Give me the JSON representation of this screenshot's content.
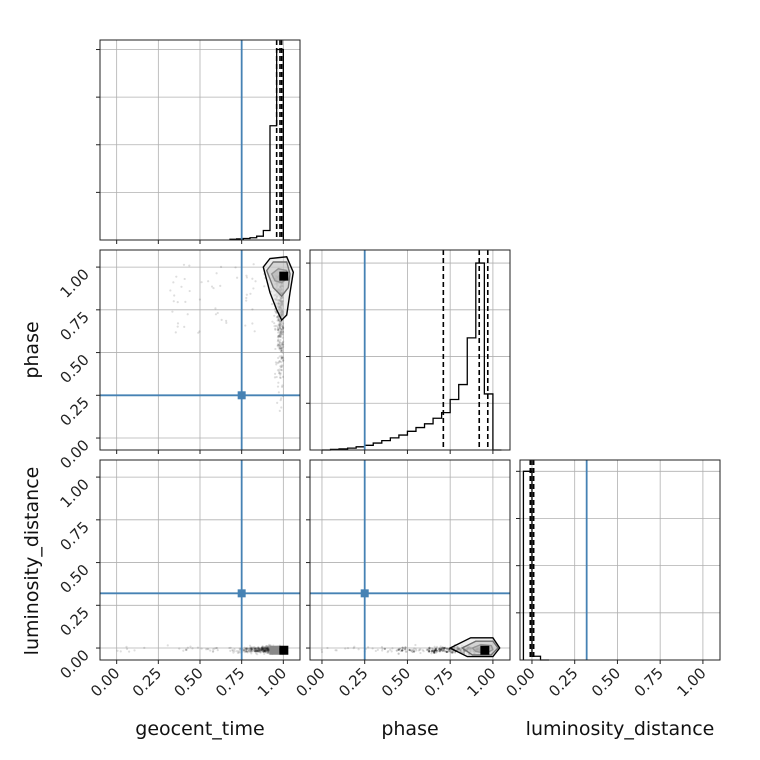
{
  "chart_data": {
    "type": "corner",
    "parameters": [
      "geocent_time",
      "phase",
      "luminosity_distance"
    ],
    "truth_color": "#4682b4",
    "truths": {
      "geocent_time": 0.75,
      "phase": 0.25,
      "luminosity_distance": 0.32
    },
    "axes": {
      "geocent_time": {
        "lim": [
          -0.1,
          1.1
        ],
        "ticks": [
          0.0,
          0.25,
          0.5,
          0.75,
          1.0
        ],
        "tick_labels": [
          "0.00",
          "0.25",
          "0.50",
          "0.75",
          "1.00"
        ]
      },
      "phase": {
        "lim": [
          -0.07,
          1.1
        ],
        "ticks": [
          0.0,
          0.25,
          0.5,
          0.75,
          1.0
        ],
        "tick_labels": [
          "0.00",
          "0.25",
          "0.50",
          "0.75",
          "1.00"
        ]
      },
      "luminosity_distance": {
        "lim": [
          -0.07,
          1.1
        ],
        "ticks": [
          0.0,
          0.25,
          0.5,
          0.75,
          1.0
        ],
        "tick_labels": [
          "0.00",
          "0.25",
          "0.50",
          "0.75",
          "1.00"
        ]
      }
    },
    "histograms": [
      {
        "parameter": "geocent_time",
        "bin_edges": [
          0.68,
          0.72,
          0.76,
          0.8,
          0.84,
          0.88,
          0.92,
          0.96,
          1.0,
          1.04
        ],
        "counts": [
          0.004,
          0.006,
          0.008,
          0.012,
          0.02,
          0.05,
          0.6,
          1.0,
          0.0
        ],
        "quantiles": [
          0.96,
          0.98,
          0.99
        ],
        "ymax": 1.05
      },
      {
        "parameter": "phase",
        "bin_edges": [
          0.0,
          0.05,
          0.1,
          0.15,
          0.2,
          0.25,
          0.3,
          0.35,
          0.4,
          0.45,
          0.5,
          0.55,
          0.6,
          0.65,
          0.7,
          0.75,
          0.8,
          0.85,
          0.9,
          0.95,
          1.0,
          1.05
        ],
        "counts": [
          0.0,
          0.003,
          0.006,
          0.01,
          0.017,
          0.025,
          0.037,
          0.05,
          0.065,
          0.08,
          0.1,
          0.12,
          0.14,
          0.17,
          0.2,
          0.27,
          0.35,
          0.6,
          1.0,
          0.3,
          0.0
        ],
        "quantiles": [
          0.71,
          0.92,
          0.97
        ],
        "ymax": 1.07
      },
      {
        "parameter": "luminosity_distance",
        "bin_edges": [
          -0.05,
          0.0,
          0.05,
          0.1
        ],
        "counts": [
          1.0,
          0.02,
          0.0
        ],
        "quantiles": [
          -0.01,
          0.0,
          0.01
        ],
        "ymax": 1.06
      }
    ],
    "scatter_panels": [
      {
        "x": "geocent_time",
        "y": "phase",
        "mode_point": [
          1.0,
          0.95
        ],
        "contours": [
          [
            [
              0.93,
              0.96
            ],
            [
              0.97,
              0.99
            ],
            [
              1.02,
              0.98
            ],
            [
              1.02,
              0.93
            ],
            [
              0.99,
              0.91
            ],
            [
              0.95,
              0.92
            ]
          ],
          [
            [
              0.9,
              0.98
            ],
            [
              0.94,
              1.03
            ],
            [
              1.02,
              1.03
            ],
            [
              1.04,
              0.96
            ],
            [
              1.03,
              0.88
            ],
            [
              0.99,
              0.83
            ],
            [
              0.94,
              0.88
            ]
          ],
          [
            [
              0.88,
              1.0
            ],
            [
              0.92,
              1.05
            ],
            [
              1.02,
              1.06
            ],
            [
              1.06,
              0.97
            ],
            [
              1.04,
              0.85
            ],
            [
              1.02,
              0.72
            ],
            [
              0.99,
              0.69
            ],
            [
              0.96,
              0.75
            ],
            [
              0.92,
              0.85
            ]
          ]
        ]
      },
      {
        "x": "geocent_time",
        "y": "luminosity_distance",
        "mode_point": [
          1.0,
          -0.01
        ],
        "contours": []
      },
      {
        "x": "phase",
        "y": "luminosity_distance",
        "mode_point": [
          0.95,
          -0.01
        ],
        "contours": [
          [
            [
              0.88,
              0.0
            ],
            [
              0.93,
              0.02
            ],
            [
              0.99,
              0.015
            ],
            [
              1.0,
              -0.01
            ],
            [
              0.96,
              -0.03
            ],
            [
              0.9,
              -0.02
            ]
          ],
          [
            [
              0.82,
              0.0
            ],
            [
              0.9,
              0.04
            ],
            [
              1.0,
              0.04
            ],
            [
              1.03,
              0.0
            ],
            [
              0.99,
              -0.04
            ],
            [
              0.88,
              -0.04
            ]
          ],
          [
            [
              0.75,
              0.0
            ],
            [
              0.87,
              0.06
            ],
            [
              1.0,
              0.06
            ],
            [
              1.04,
              0.0
            ],
            [
              1.0,
              -0.05
            ],
            [
              0.85,
              -0.05
            ]
          ]
        ]
      }
    ]
  }
}
